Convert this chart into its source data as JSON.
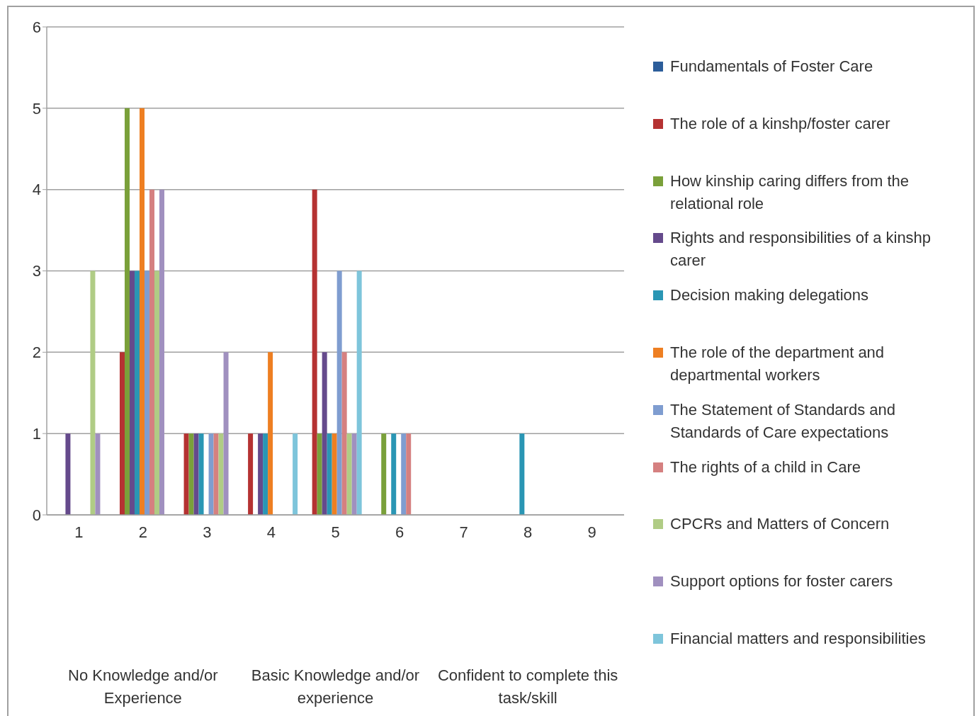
{
  "chart_data": {
    "type": "bar",
    "categories": [
      "1",
      "2",
      "3",
      "4",
      "5",
      "6",
      "7",
      "8",
      "9"
    ],
    "series": [
      {
        "name": "Fundamentals of Foster Care",
        "color": "#2c5d9a",
        "values": [
          0,
          0,
          0,
          0,
          0,
          0,
          0,
          0,
          0
        ]
      },
      {
        "name": "The role of a kinshp/foster carer",
        "color": "#b53232",
        "values": [
          0,
          2,
          1,
          1,
          4,
          0,
          0,
          0,
          0
        ]
      },
      {
        "name": "How kinship caring differs from the relational role",
        "color": "#7aa03a",
        "values": [
          0,
          5,
          1,
          0,
          1,
          1,
          0,
          0,
          0
        ]
      },
      {
        "name": "Rights and responsibilities of a kinshp carer",
        "color": "#654a8c",
        "values": [
          1,
          3,
          1,
          1,
          2,
          0,
          0,
          0,
          0
        ]
      },
      {
        "name": "Decision making delegations",
        "color": "#2a96b4",
        "values": [
          0,
          3,
          1,
          1,
          1,
          1,
          0,
          1,
          0
        ]
      },
      {
        "name": "The role of the department and departmental workers",
        "color": "#ee7f22",
        "values": [
          0,
          5,
          0,
          2,
          1,
          0,
          0,
          0,
          0
        ]
      },
      {
        "name": "The Statement of Standards and Standards of Care expectations",
        "color": "#7f9dd0",
        "values": [
          0,
          3,
          1,
          0,
          3,
          1,
          0,
          0,
          0
        ]
      },
      {
        "name": "The rights of a child in Care",
        "color": "#d58080",
        "values": [
          0,
          4,
          1,
          0,
          2,
          1,
          0,
          0,
          0
        ]
      },
      {
        "name": "CPCRs and Matters of Concern",
        "color": "#b0cc85",
        "values": [
          3,
          3,
          1,
          0,
          1,
          0,
          0,
          0,
          0
        ]
      },
      {
        "name": "Support options for foster carers",
        "color": "#a090bf",
        "values": [
          1,
          4,
          2,
          0,
          1,
          0,
          0,
          0,
          0
        ]
      },
      {
        "name": "Financial matters and responsibilities",
        "color": "#7ec5db",
        "values": [
          0,
          0,
          0,
          1,
          3,
          0,
          0,
          0,
          0
        ]
      }
    ],
    "annotations": [
      "No Knowledge and/or Experience",
      "Basic Knowledge and/or experience",
      "Confident to complete this task/skill"
    ],
    "ylim": [
      0,
      6
    ],
    "yticks": [
      0,
      1,
      2,
      3,
      4,
      5,
      6
    ],
    "grid": "y",
    "legend": "right"
  }
}
